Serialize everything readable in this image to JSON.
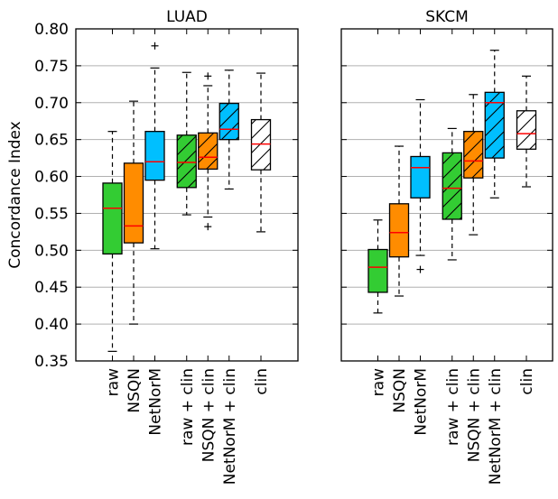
{
  "y_axis_label": "Concordance Index",
  "colors": {
    "raw": "#33cc33",
    "nsqn": "#ff8c00",
    "netnorm": "#00bfff",
    "clin": "#ffffff",
    "median": "#ff0000",
    "grid": "#b0b0b0"
  },
  "chart_data": [
    {
      "type": "box",
      "title": "LUAD",
      "ylabel": "Concordance Index",
      "ylim": [
        0.35,
        0.8
      ],
      "yticks": [
        "0.35",
        "0.40",
        "0.45",
        "0.50",
        "0.55",
        "0.60",
        "0.65",
        "0.70",
        "0.75",
        "0.80"
      ],
      "grid": "horizontal",
      "boxes": [
        {
          "label": "raw",
          "color": "raw",
          "hatch": false,
          "whislo": 0.363,
          "q1": 0.495,
          "med": 0.557,
          "q3": 0.591,
          "whishi": 0.661,
          "fliers": []
        },
        {
          "label": "NSQN",
          "color": "nsqn",
          "hatch": false,
          "whislo": 0.4,
          "q1": 0.51,
          "med": 0.533,
          "q3": 0.618,
          "whishi": 0.702,
          "fliers": []
        },
        {
          "label": "NetNorM",
          "color": "netnorm",
          "hatch": false,
          "whislo": 0.502,
          "q1": 0.595,
          "med": 0.62,
          "q3": 0.661,
          "whishi": 0.747,
          "fliers": [
            0.777
          ]
        },
        {
          "label": "raw + clin",
          "color": "raw",
          "hatch": true,
          "whislo": 0.548,
          "q1": 0.585,
          "med": 0.619,
          "q3": 0.656,
          "whishi": 0.741,
          "fliers": []
        },
        {
          "label": "NSQN + clin",
          "color": "nsqn",
          "hatch": true,
          "whislo": 0.545,
          "q1": 0.61,
          "med": 0.626,
          "q3": 0.659,
          "whishi": 0.723,
          "fliers": [
            0.532,
            0.736
          ]
        },
        {
          "label": "NetNorM + clin",
          "color": "netnorm",
          "hatch": true,
          "whislo": 0.583,
          "q1": 0.65,
          "med": 0.664,
          "q3": 0.699,
          "whishi": 0.744,
          "fliers": []
        },
        {
          "label": "clin",
          "color": "clin",
          "hatch": true,
          "whislo": 0.525,
          "q1": 0.609,
          "med": 0.644,
          "q3": 0.677,
          "whishi": 0.74,
          "fliers": []
        }
      ]
    },
    {
      "type": "box",
      "title": "SKCM",
      "ylim": [
        0.35,
        0.8
      ],
      "grid": "horizontal",
      "boxes": [
        {
          "label": "raw",
          "color": "raw",
          "hatch": false,
          "whislo": 0.415,
          "q1": 0.443,
          "med": 0.477,
          "q3": 0.501,
          "whishi": 0.541,
          "fliers": []
        },
        {
          "label": "NSQN",
          "color": "nsqn",
          "hatch": false,
          "whislo": 0.438,
          "q1": 0.491,
          "med": 0.524,
          "q3": 0.563,
          "whishi": 0.641,
          "fliers": []
        },
        {
          "label": "NetNorM",
          "color": "netnorm",
          "hatch": false,
          "whislo": 0.493,
          "q1": 0.571,
          "med": 0.612,
          "q3": 0.627,
          "whishi": 0.704,
          "fliers": [
            0.474
          ]
        },
        {
          "label": "raw + clin",
          "color": "raw",
          "hatch": true,
          "whislo": 0.487,
          "q1": 0.542,
          "med": 0.584,
          "q3": 0.632,
          "whishi": 0.665,
          "fliers": []
        },
        {
          "label": "NSQN + clin",
          "color": "nsqn",
          "hatch": true,
          "whislo": 0.521,
          "q1": 0.598,
          "med": 0.621,
          "q3": 0.661,
          "whishi": 0.711,
          "fliers": []
        },
        {
          "label": "NetNorM + clin",
          "color": "netnorm",
          "hatch": true,
          "whislo": 0.571,
          "q1": 0.625,
          "med": 0.7,
          "q3": 0.714,
          "whishi": 0.771,
          "fliers": []
        },
        {
          "label": "clin",
          "color": "clin",
          "hatch": true,
          "whislo": 0.586,
          "q1": 0.637,
          "med": 0.658,
          "q3": 0.689,
          "whishi": 0.736,
          "fliers": []
        }
      ]
    }
  ]
}
